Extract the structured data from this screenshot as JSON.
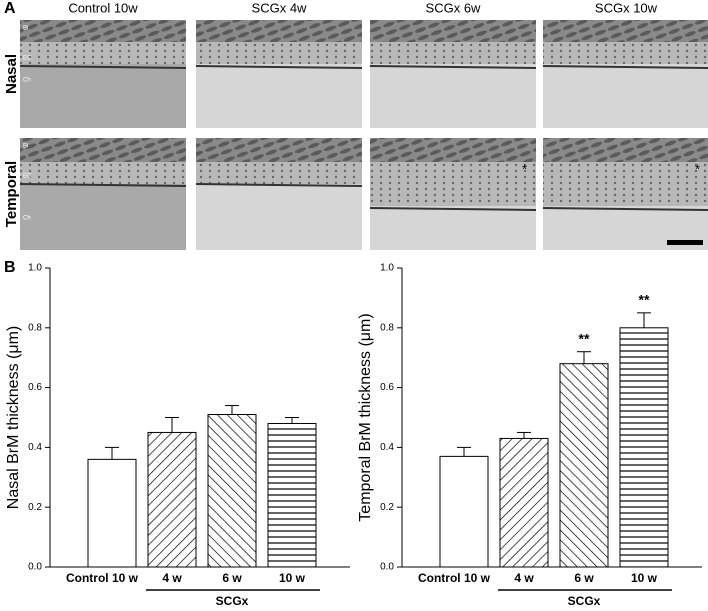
{
  "figure": {
    "panel_labels": [
      "A",
      "B"
    ],
    "columns": [
      "Control 10w",
      "SCGx 4w",
      "SCGx 6w",
      "SCGx 10w"
    ],
    "rows": [
      "Nasal",
      "Temporal"
    ],
    "layer_labels": [
      "Bl",
      "EC",
      "Ch"
    ],
    "asterisk": "*"
  },
  "chart_data": [
    {
      "type": "bar",
      "y_label": "Nasal BrM thickness (μm)",
      "categories": [
        "Control 10 w",
        "4 w",
        "6 w",
        "10 w"
      ],
      "values": [
        0.36,
        0.45,
        0.51,
        0.48
      ],
      "errors": [
        0.04,
        0.05,
        0.03,
        0.02
      ],
      "hatch": [
        "none",
        "/",
        "\\",
        "-"
      ],
      "color": "#ffffff",
      "group_label": "SCGx",
      "ylim": [
        0,
        1.0
      ],
      "yticks": [
        {
          "value": 0,
          "label": "0.0"
        },
        0.2,
        0.4,
        0.6,
        0.8,
        {
          "value": 1,
          "label": "1.0"
        }
      ]
    },
    {
      "type": "bar",
      "y_label": "Temporal BrM thickness (μm)",
      "categories": [
        "Control 10 w",
        "4 w",
        "6 w",
        "10 w"
      ],
      "values": [
        0.37,
        0.43,
        0.68,
        0.8
      ],
      "errors": [
        0.03,
        0.02,
        0.04,
        0.05
      ],
      "significance": [
        null,
        null,
        "**",
        "**"
      ],
      "hatch": [
        "none",
        "/",
        "\\",
        "-"
      ],
      "color": "#ffffff",
      "group_label": "SCGx",
      "ylim": [
        0,
        1.0
      ],
      "yticks": [
        {
          "value": 0,
          "label": "0.0"
        },
        0.2,
        0.4,
        0.6,
        0.8,
        {
          "value": 1,
          "label": "1.0"
        }
      ]
    }
  ]
}
